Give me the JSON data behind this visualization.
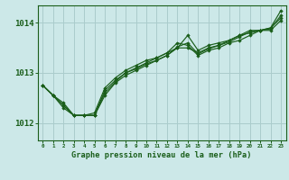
{
  "title": "Graphe pression niveau de la mer (hPa)",
  "xlabel_hours": [
    0,
    1,
    2,
    3,
    4,
    5,
    6,
    7,
    8,
    9,
    10,
    11,
    12,
    13,
    14,
    15,
    16,
    17,
    18,
    19,
    20,
    21,
    22,
    23
  ],
  "ylim": [
    1011.65,
    1014.35
  ],
  "yticks": [
    1012,
    1013,
    1014
  ],
  "background_color": "#cce8e8",
  "grid_color": "#aacccc",
  "line_color": "#1a5e1a",
  "marker_color": "#1a5e1a",
  "lines": [
    [
      1012.75,
      1012.55,
      1012.4,
      1012.15,
      1012.15,
      1012.15,
      1012.65,
      1012.85,
      1013.0,
      1013.1,
      1013.2,
      1013.3,
      1013.4,
      1013.6,
      1013.55,
      1013.35,
      1013.45,
      1013.5,
      1013.6,
      1013.65,
      1013.75,
      1013.85,
      1013.9,
      1014.25
    ],
    [
      1012.75,
      1012.55,
      1012.35,
      1012.15,
      1012.15,
      1012.15,
      1012.55,
      1012.8,
      1012.95,
      1013.05,
      1013.15,
      1013.25,
      1013.35,
      1013.5,
      1013.75,
      1013.45,
      1013.55,
      1013.6,
      1013.65,
      1013.75,
      1013.85,
      1013.85,
      1013.9,
      1014.1
    ],
    [
      1012.75,
      1012.55,
      1012.35,
      1012.15,
      1012.15,
      1012.2,
      1012.7,
      1012.9,
      1013.05,
      1013.15,
      1013.25,
      1013.3,
      1013.4,
      1013.5,
      1013.5,
      1013.4,
      1013.5,
      1013.55,
      1013.65,
      1013.75,
      1013.8,
      1013.85,
      1013.85,
      1014.05
    ],
    [
      1012.75,
      1012.55,
      1012.3,
      1012.15,
      1012.15,
      1012.15,
      1012.6,
      1012.82,
      1013.0,
      1013.08,
      1013.18,
      1013.25,
      1013.35,
      1013.52,
      1013.6,
      1013.38,
      1013.48,
      1013.55,
      1013.62,
      1013.72,
      1013.82,
      1013.85,
      1013.88,
      1014.15
    ]
  ]
}
